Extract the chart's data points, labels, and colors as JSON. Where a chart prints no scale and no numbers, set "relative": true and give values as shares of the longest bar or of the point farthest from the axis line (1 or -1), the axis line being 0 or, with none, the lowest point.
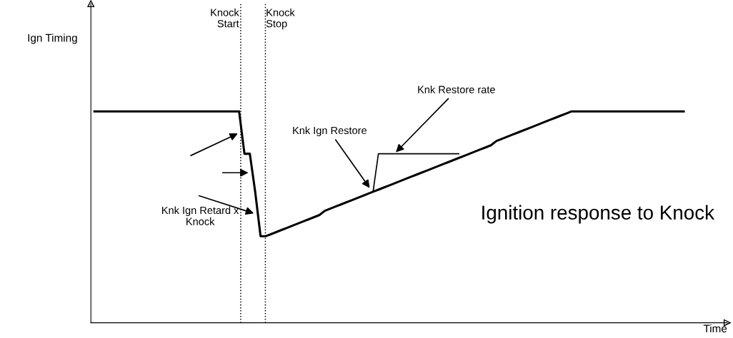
{
  "chart_data": {
    "type": "line",
    "relative": true,
    "title": "Ignition response to Knock",
    "xlabel": "Time",
    "tick_labels": false,
    "marker": "none",
    "line_style": "solid",
    "categories": [
      null,
      null,
      null,
      null,
      null,
      null,
      null,
      null,
      null,
      null,
      null,
      null,
      null,
      null,
      null,
      null,
      null,
      null,
      null,
      null,
      null,
      null,
      null,
      null,
      null,
      null,
      null,
      null,
      null,
      null,
      null,
      null,
      null,
      null,
      null,
      null,
      null,
      null,
      null,
      null,
      null,
      null,
      null,
      null,
      null,
      null,
      null,
      null,
      null,
      null,
      null,
      null,
      null,
      null,
      null,
      null,
      null,
      null,
      null,
      null,
      null,
      null,
      null,
      null,
      null,
      null,
      null,
      null,
      null,
      null,
      null,
      null,
      null,
      null,
      null,
      null,
      null,
      null,
      null,
      null,
      null,
      null,
      null,
      null,
      null,
      null,
      null,
      null,
      null,
      null,
      null,
      null,
      null,
      null,
      null,
      null,
      null,
      null,
      null,
      null,
      null,
      null,
      null,
      null,
      null,
      null,
      null,
      null,
      null,
      null,
      null
    ],
    "series": [
      {
        "color": "#000000",
        "values": [
          1,
          1,
          1,
          1,
          1,
          1,
          1,
          1,
          1,
          1,
          1,
          1,
          1,
          1,
          1,
          1,
          1,
          1,
          1,
          1,
          1,
          1,
          1,
          1,
          1,
          1,
          1,
          1,
          0.8,
          0.8,
          0.62,
          0.41,
          0.41,
          0.42,
          0.43,
          0.44,
          0.45,
          0.46,
          0.47,
          0.48,
          0.49,
          0.5,
          0.51,
          0.53,
          0.54,
          0.55,
          0.56,
          0.57,
          0.58,
          0.59,
          0.6,
          0.61,
          0.62,
          0.63,
          0.64,
          0.65,
          0.66,
          0.67,
          0.68,
          0.69,
          0.7,
          0.71,
          0.72,
          0.73,
          0.74,
          0.75,
          0.76,
          0.77,
          0.78,
          0.79,
          0.8,
          0.81,
          0.82,
          0.83,
          0.84,
          0.86,
          0.87,
          0.88,
          0.89,
          0.9,
          0.91,
          0.92,
          0.93,
          0.94,
          0.95,
          0.96,
          0.97,
          0.98,
          0.99,
          1,
          1,
          1,
          1,
          1,
          1,
          1,
          1,
          1,
          1,
          1,
          1,
          1,
          1,
          1,
          1,
          1,
          1,
          1,
          1,
          1,
          1
        ]
      },
      {
        "color": "#000000",
        "values": [
          null,
          null,
          null,
          null,
          null,
          null,
          null,
          null,
          null,
          null,
          null,
          null,
          null,
          null,
          null,
          null,
          null,
          null,
          null,
          null,
          null,
          null,
          null,
          null,
          null,
          null,
          null,
          null,
          null,
          null,
          null,
          null,
          null,
          null,
          null,
          null,
          null,
          null,
          null,
          null,
          null,
          null,
          null,
          null,
          null,
          null,
          null,
          null,
          null,
          null,
          null,
          null,
          0.62,
          0.8,
          0.8,
          0.8,
          0.8,
          0.8,
          0.8,
          0.8,
          0.8,
          0.8,
          0.8,
          0.8,
          0.8,
          0.8,
          0.8,
          0.8,
          0.8,
          null,
          null,
          null,
          null,
          null,
          null,
          null,
          null,
          null,
          null,
          null,
          null,
          null,
          null,
          null,
          null,
          null,
          null,
          null,
          null,
          null,
          null,
          null,
          null,
          null,
          null,
          null,
          null,
          null,
          null,
          null,
          null,
          null,
          null,
          null,
          null,
          null,
          null,
          null,
          null,
          null,
          null
        ]
      }
    ],
    "annotations": [
      "Knk Ign Retard x\nKnock",
      "Knk Ign Restore",
      "Knk Restore rate",
      "Ign Timing",
      "Knock\nStart",
      "Knock\nStop"
    ]
  }
}
